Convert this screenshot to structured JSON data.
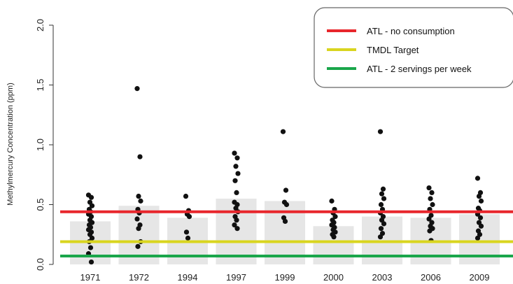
{
  "chart_data": {
    "type": "bar",
    "title": "",
    "xlabel": "",
    "ylabel": "Methylmercury Concentration (ppm)",
    "ylim": [
      0,
      2.0
    ],
    "yticks": [
      "0.0",
      "0.5",
      "1.0",
      "1.5",
      "2.0"
    ],
    "grid": false,
    "categories": [
      "1971",
      "1972",
      "1994",
      "1997",
      "1999",
      "2000",
      "2003",
      "2006",
      "2009"
    ],
    "bar_values": [
      0.36,
      0.49,
      0.39,
      0.55,
      0.53,
      0.32,
      0.4,
      0.39,
      0.42
    ],
    "bar_color": "#e6e6e6",
    "points": [
      [
        0.58,
        0.56,
        0.52,
        0.49,
        0.46,
        0.44,
        0.42,
        0.4,
        0.37,
        0.35,
        0.33,
        0.31,
        0.29,
        0.27,
        0.25,
        0.22,
        0.19,
        0.14,
        0.09,
        0.02
      ],
      [
        1.47,
        0.9,
        0.57,
        0.53,
        0.46,
        0.43,
        0.38,
        0.33,
        0.3,
        0.19,
        0.15
      ],
      [
        0.57,
        0.45,
        0.42,
        0.4,
        0.27,
        0.22
      ],
      [
        0.93,
        0.89,
        0.82,
        0.76,
        0.7,
        0.6,
        0.52,
        0.5,
        0.47,
        0.44,
        0.4,
        0.37,
        0.33,
        0.3
      ],
      [
        1.11,
        0.62,
        0.52,
        0.5,
        0.39,
        0.36
      ],
      [
        0.53,
        0.46,
        0.43,
        0.4,
        0.37,
        0.35,
        0.33,
        0.31,
        0.29,
        0.27,
        0.25,
        0.23
      ],
      [
        1.11,
        0.63,
        0.59,
        0.55,
        0.5,
        0.46,
        0.43,
        0.4,
        0.37,
        0.34,
        0.3,
        0.26,
        0.23
      ],
      [
        0.64,
        0.6,
        0.55,
        0.5,
        0.46,
        0.41,
        0.38,
        0.35,
        0.32,
        0.3,
        0.28,
        0.2
      ],
      [
        0.72,
        0.6,
        0.57,
        0.53,
        0.47,
        0.45,
        0.42,
        0.39,
        0.35,
        0.32,
        0.28,
        0.25,
        0.22
      ]
    ],
    "point_color": "#111111",
    "reference_lines": [
      {
        "name": "ATL - no consumption",
        "value": 0.44,
        "color": "#e8262c"
      },
      {
        "name": "TMDL Target",
        "value": 0.19,
        "color": "#d9d51f"
      },
      {
        "name": "ATL - 2 servings per week",
        "value": 0.07,
        "color": "#1aa64b"
      }
    ],
    "legend_position": "top-right"
  }
}
